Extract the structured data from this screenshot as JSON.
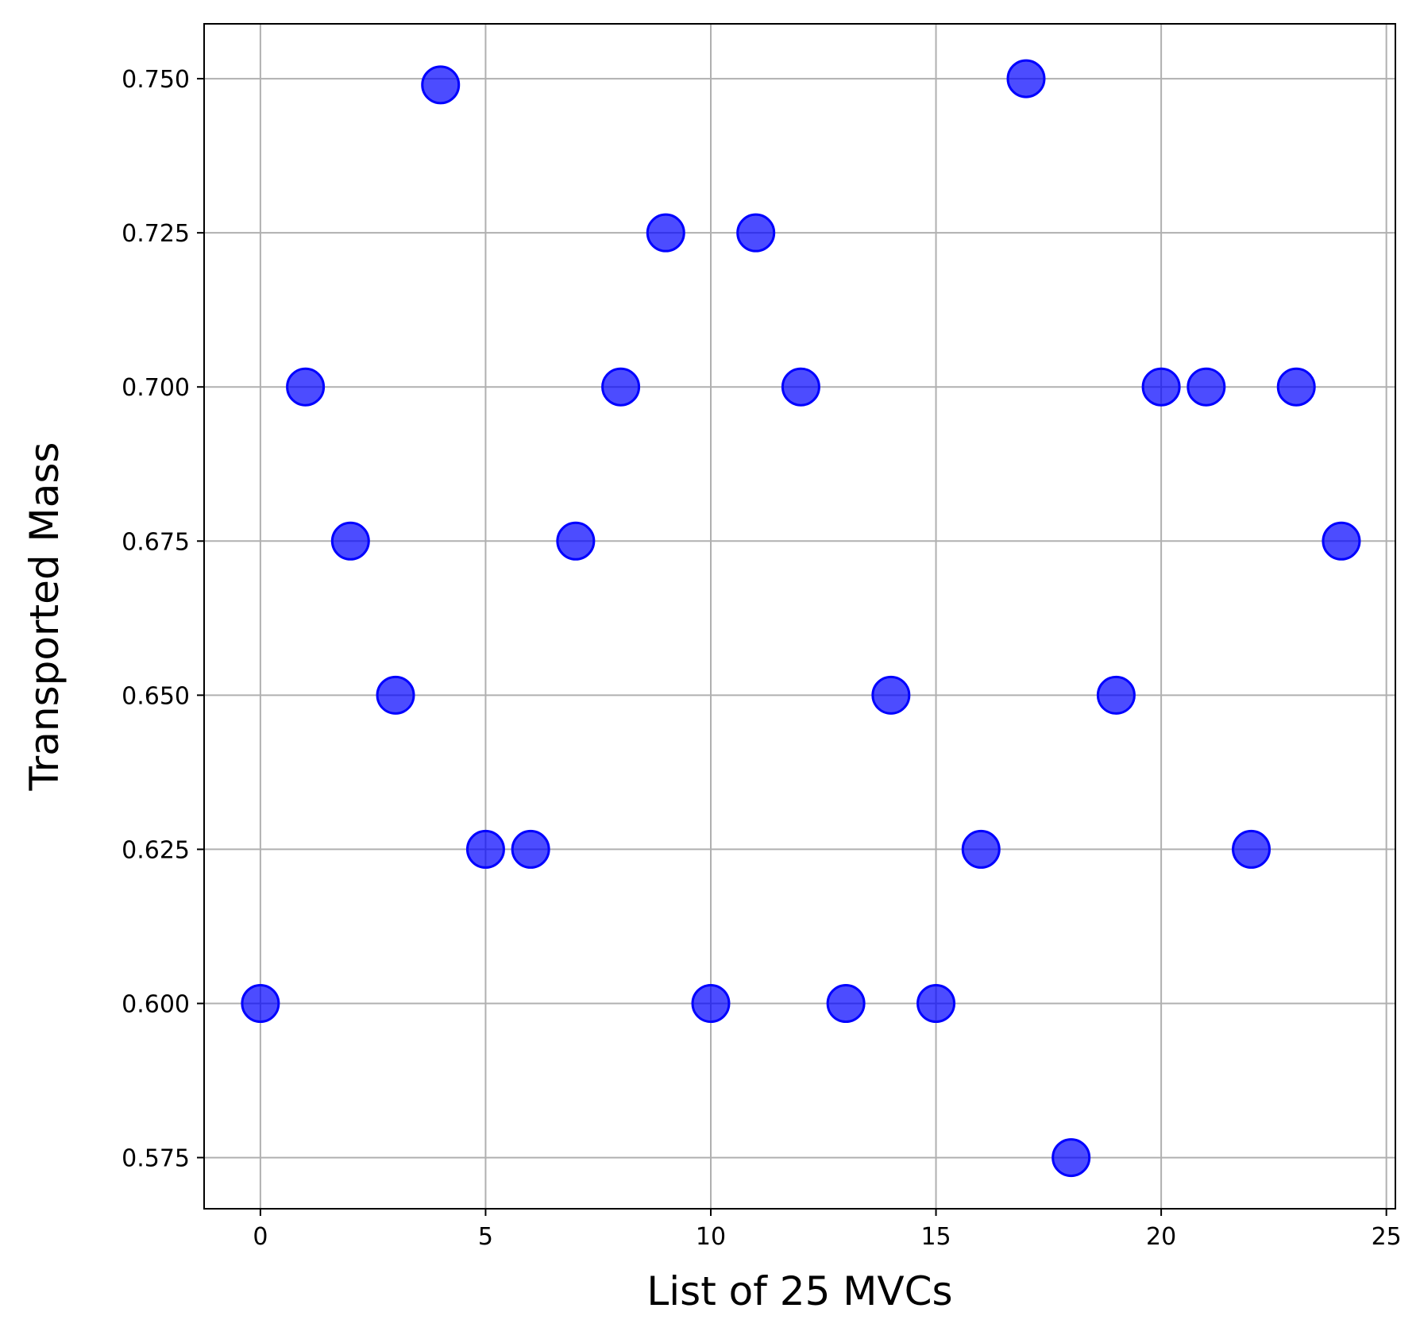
{
  "chart_data": {
    "type": "scatter",
    "title": "",
    "xlabel": "List of 25 MVCs",
    "ylabel": "Transported Mass",
    "xlim": [
      -1.25,
      25.2
    ],
    "ylim": [
      0.5667,
      0.7589
    ],
    "xticks": [
      0,
      5,
      10,
      15,
      20,
      25
    ],
    "xtick_labels": [
      "0",
      "5",
      "10",
      "15",
      "20",
      "25"
    ],
    "yticks": [
      0.575,
      0.6,
      0.625,
      0.65,
      0.675,
      0.7,
      0.725,
      0.75
    ],
    "ytick_labels": [
      "0.575",
      "0.600",
      "0.625",
      "0.650",
      "0.675",
      "0.700",
      "0.725",
      "0.750"
    ],
    "grid": true,
    "legend": "none",
    "marker_fill": "#0000ff",
    "marker_fill_opacity": 0.7,
    "marker_edge": "#0000ff",
    "series": [
      {
        "x": [
          0,
          1,
          2,
          3,
          4,
          5,
          6,
          7,
          8,
          9,
          10,
          11,
          12,
          13,
          14,
          15,
          16,
          17,
          18,
          19,
          20,
          21,
          22,
          23,
          24
        ],
        "y": [
          0.6,
          0.7,
          0.675,
          0.65,
          0.749,
          0.625,
          0.625,
          0.675,
          0.7,
          0.725,
          0.6,
          0.725,
          0.7,
          0.6,
          0.65,
          0.6,
          0.625,
          0.75,
          0.575,
          0.65,
          0.7,
          0.7,
          0.625,
          0.7,
          0.675
        ]
      }
    ]
  }
}
